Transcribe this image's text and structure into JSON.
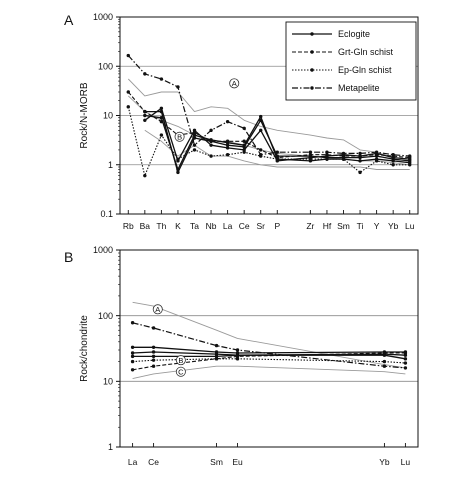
{
  "figure": {
    "panels": [
      "A",
      "B"
    ]
  },
  "chart_data": [
    {
      "panel": "A",
      "type": "line",
      "ylabel": "Rock/N-MORB",
      "yscale": "log",
      "ylim": [
        0.1,
        1000
      ],
      "yticks": [
        "0.1",
        "1",
        "10",
        "100",
        "1000"
      ],
      "grid": "horizontal at decades",
      "legend_placement": "top-right",
      "categories": [
        "Rb",
        "Ba",
        "Th",
        "K",
        "Ta",
        "Nb",
        "La",
        "Ce",
        "Sr",
        "P",
        "Zr",
        "Hf",
        "Sm",
        "Ti",
        "Y",
        "Yb",
        "Lu"
      ],
      "category_positions": [
        1,
        2,
        3,
        4,
        5,
        6,
        7,
        8,
        9,
        10,
        12,
        13,
        14,
        15,
        16,
        17,
        18
      ],
      "legend": [
        {
          "name": "Eclogite",
          "style": "solid"
        },
        {
          "name": "Grt-Gln schist",
          "style": "dashed"
        },
        {
          "name": "Ep-Gln schist",
          "style": "dotted"
        },
        {
          "name": "Metapelite",
          "style": "dashdot"
        }
      ],
      "series": [
        {
          "style": "solid",
          "values": [
            null,
            12,
            12,
            0.7,
            3.5,
            3.0,
            2.5,
            2.3,
            8,
            1.5,
            1.5,
            1.4,
            1.4,
            1.4,
            1.5,
            1.3,
            1.2
          ]
        },
        {
          "style": "solid",
          "values": [
            null,
            10,
            9,
            0.8,
            4,
            3.2,
            2.8,
            2.5,
            9.5,
            1.3,
            1.2,
            1.3,
            1.3,
            1.2,
            1.3,
            1.2,
            1.1
          ]
        },
        {
          "style": "solid",
          "values": [
            null,
            8,
            14,
            1.2,
            5,
            2.5,
            2.2,
            2.0,
            5,
            1.2,
            1.4,
            1.5,
            1.6,
            1.5,
            1.7,
            1.4,
            1.3
          ]
        },
        {
          "style": "dashdot",
          "values": [
            165,
            70,
            55,
            38,
            2.5,
            5,
            7.5,
            5.5,
            1.6,
            1.8,
            1.8,
            1.8,
            1.7,
            1.7,
            1.8,
            1.6,
            1.5
          ]
        },
        {
          "style": "dashed",
          "values": [
            30,
            12,
            7.5,
            4.0,
            4.5,
            3.0,
            3.0,
            3.0,
            2.0,
            1.4,
            1.6,
            1.6,
            1.5,
            1.5,
            1.6,
            1.5,
            1.4
          ]
        },
        {
          "style": "dotted",
          "values": [
            15,
            0.6,
            4.0,
            1.3,
            2.0,
            1.5,
            1.6,
            1.8,
            1.5,
            1.3,
            1.3,
            1.3,
            1.3,
            0.7,
            1.2,
            1.0,
            1.0
          ]
        },
        {
          "style": "gray",
          "values": [
            55,
            25,
            30,
            30,
            12,
            15,
            14,
            8,
            6,
            5,
            4,
            3.5,
            3.2,
            2.0,
            1.8,
            1.4,
            1.3
          ]
        },
        {
          "style": "gray",
          "values": [
            25,
            12,
            8,
            6,
            4,
            3,
            3,
            2.5,
            2,
            1.7,
            1.5,
            1.4,
            1.3,
            1.2,
            1.2,
            1.1,
            1.0
          ]
        },
        {
          "style": "gray",
          "values": [
            null,
            5,
            3,
            1.5,
            2.5,
            1.5,
            1.5,
            1.2,
            1.0,
            0.9,
            0.9,
            0.9,
            0.9,
            0.9,
            0.8,
            0.8,
            0.8
          ]
        }
      ],
      "annotations": [
        {
          "label": "A",
          "x": 7.4,
          "y": 45
        },
        {
          "label": "B",
          "x": 4.1,
          "y": 3.7
        }
      ]
    },
    {
      "panel": "B",
      "type": "line",
      "ylabel": "Rock/chondrite",
      "yscale": "log",
      "ylim": [
        1,
        1000
      ],
      "yticks": [
        "1",
        "10",
        "100",
        "1000"
      ],
      "grid": "horizontal at decades",
      "categories": [
        "La",
        "Ce",
        "Sm",
        "Eu",
        "Yb",
        "Lu"
      ],
      "category_positions": [
        1,
        2,
        5,
        6,
        13,
        14
      ],
      "series": [
        {
          "style": "gray",
          "values": [
            160,
            140,
            60,
            45,
            18,
            16
          ]
        },
        {
          "style": "dashdot",
          "values": [
            78,
            65,
            35,
            30,
            17,
            16
          ]
        },
        {
          "style": "solid",
          "values": [
            33,
            33,
            28,
            27,
            28,
            28
          ]
        },
        {
          "style": "solid",
          "values": [
            27,
            28,
            26,
            25,
            26,
            25
          ]
        },
        {
          "style": "solid",
          "values": [
            24,
            24,
            24,
            25,
            25,
            22
          ]
        },
        {
          "style": "dashed",
          "values": [
            15,
            17,
            22,
            24,
            27,
            27
          ]
        },
        {
          "style": "dotted",
          "values": [
            20,
            21,
            22,
            22,
            20,
            19
          ]
        },
        {
          "style": "gray",
          "values": [
            11,
            13,
            17,
            17,
            14,
            13
          ]
        }
      ],
      "annotations": [
        {
          "label": "A",
          "x": 2.2,
          "y": 125
        },
        {
          "label": "B",
          "x": 3.3,
          "y": 21
        },
        {
          "label": "C",
          "x": 3.3,
          "y": 14
        }
      ]
    }
  ]
}
